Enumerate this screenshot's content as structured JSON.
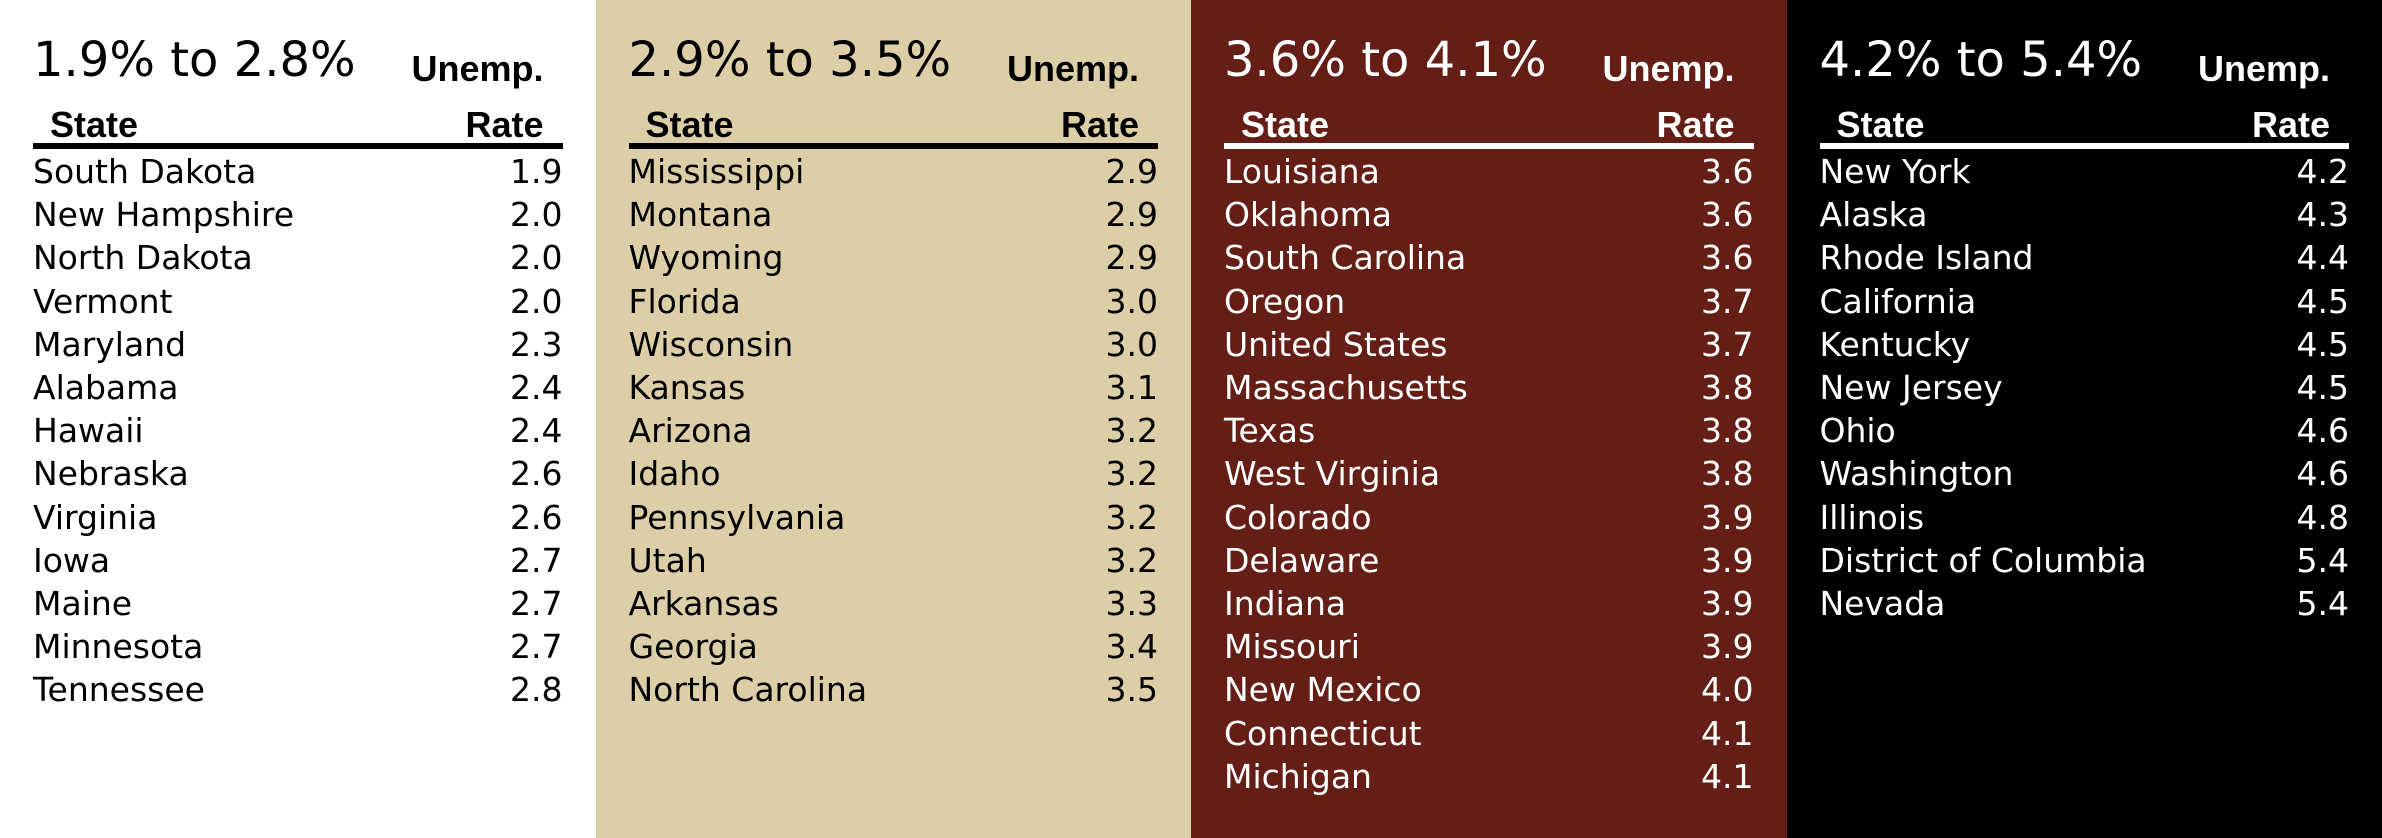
{
  "header_label": "Unemp.",
  "column_state": "State",
  "column_rate": "Rate",
  "panels": [
    {
      "range": "1.9% to 2.8%",
      "rows": [
        {
          "state": "South Dakota",
          "rate": "1.9"
        },
        {
          "state": "New Hampshire",
          "rate": "2.0"
        },
        {
          "state": "North Dakota",
          "rate": "2.0"
        },
        {
          "state": "Vermont",
          "rate": "2.0"
        },
        {
          "state": "Maryland",
          "rate": "2.3"
        },
        {
          "state": "Alabama",
          "rate": "2.4"
        },
        {
          "state": "Hawaii",
          "rate": "2.4"
        },
        {
          "state": "Nebraska",
          "rate": "2.6"
        },
        {
          "state": "Virginia",
          "rate": "2.6"
        },
        {
          "state": "Iowa",
          "rate": "2.7"
        },
        {
          "state": "Maine",
          "rate": "2.7"
        },
        {
          "state": "Minnesota",
          "rate": "2.7"
        },
        {
          "state": "Tennessee",
          "rate": "2.8"
        }
      ]
    },
    {
      "range": "2.9% to 3.5%",
      "rows": [
        {
          "state": "Mississippi",
          "rate": "2.9"
        },
        {
          "state": "Montana",
          "rate": "2.9"
        },
        {
          "state": "Wyoming",
          "rate": "2.9"
        },
        {
          "state": "Florida",
          "rate": "3.0"
        },
        {
          "state": "Wisconsin",
          "rate": "3.0"
        },
        {
          "state": "Kansas",
          "rate": "3.1"
        },
        {
          "state": "Arizona",
          "rate": "3.2"
        },
        {
          "state": "Idaho",
          "rate": "3.2"
        },
        {
          "state": "Pennsylvania",
          "rate": "3.2"
        },
        {
          "state": "Utah",
          "rate": "3.2"
        },
        {
          "state": "Arkansas",
          "rate": "3.3"
        },
        {
          "state": "Georgia",
          "rate": "3.4"
        },
        {
          "state": "North Carolina",
          "rate": "3.5"
        }
      ]
    },
    {
      "range": "3.6% to 4.1%",
      "rows": [
        {
          "state": "Louisiana",
          "rate": "3.6"
        },
        {
          "state": "Oklahoma",
          "rate": "3.6"
        },
        {
          "state": "South Carolina",
          "rate": "3.6"
        },
        {
          "state": "Oregon",
          "rate": "3.7"
        },
        {
          "state": "United States",
          "rate": "3.7"
        },
        {
          "state": "Massachusetts",
          "rate": "3.8"
        },
        {
          "state": "Texas",
          "rate": "3.8"
        },
        {
          "state": "West Virginia",
          "rate": "3.8"
        },
        {
          "state": "Colorado",
          "rate": "3.9"
        },
        {
          "state": "Delaware",
          "rate": "3.9"
        },
        {
          "state": "Indiana",
          "rate": "3.9"
        },
        {
          "state": "Missouri",
          "rate": "3.9"
        },
        {
          "state": "New Mexico",
          "rate": "4.0"
        },
        {
          "state": "Connecticut",
          "rate": "4.1"
        },
        {
          "state": "Michigan",
          "rate": "4.1"
        }
      ]
    },
    {
      "range": "4.2% to 5.4%",
      "rows": [
        {
          "state": "New York",
          "rate": "4.2"
        },
        {
          "state": "Alaska",
          "rate": "4.3"
        },
        {
          "state": "Rhode Island",
          "rate": "4.4"
        },
        {
          "state": "California",
          "rate": "4.5"
        },
        {
          "state": "Kentucky",
          "rate": "4.5"
        },
        {
          "state": "New Jersey",
          "rate": "4.5"
        },
        {
          "state": "Ohio",
          "rate": "4.6"
        },
        {
          "state": "Washington",
          "rate": "4.6"
        },
        {
          "state": "Illinois",
          "rate": "4.8"
        },
        {
          "state": "District of Columbia",
          "rate": "5.4"
        },
        {
          "state": "Nevada",
          "rate": "5.4"
        }
      ]
    }
  ]
}
